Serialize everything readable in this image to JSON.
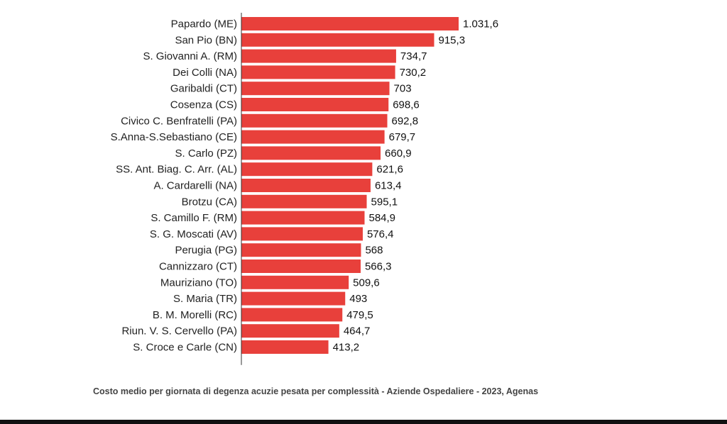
{
  "caption": "Costo medio per giornata di degenza acuzie pesata per complessità - Aziende Ospedaliere - 2023, Agenas",
  "colors": {
    "bar": "#e8403b",
    "axis": "#333333",
    "background": "#ffffff"
  },
  "chart_data": {
    "type": "bar",
    "orientation": "horizontal",
    "title": "",
    "xlabel": "",
    "ylabel": "",
    "grid": false,
    "xlim": [
      0,
      1031.6
    ],
    "categories": [
      "Papardo (ME)",
      "San Pio (BN)",
      "S. Giovanni A. (RM)",
      "Dei Colli (NA)",
      "Garibaldi (CT)",
      "Cosenza (CS)",
      "Civico C. Benfratelli (PA)",
      "S.Anna-S.Sebastiano (CE)",
      "S. Carlo (PZ)",
      "SS. Ant. Biag. C. Arr. (AL)",
      "A. Cardarelli (NA)",
      "Brotzu (CA)",
      "S. Camillo F. (RM)",
      "S. G. Moscati (AV)",
      "Perugia (PG)",
      "Cannizzaro (CT)",
      "Mauriziano (TO)",
      "S. Maria (TR)",
      "B. M. Morelli (RC)",
      "Riun. V. S. Cervello (PA)",
      "S. Croce e Carle (CN)"
    ],
    "values": [
      1031.6,
      915.3,
      734.7,
      730.2,
      703,
      698.6,
      692.8,
      679.7,
      660.9,
      621.6,
      613.4,
      595.1,
      584.9,
      576.4,
      568,
      566.3,
      509.6,
      493,
      479.5,
      464.7,
      413.2
    ],
    "value_labels": [
      "1.031,6",
      "915,3",
      "734,7",
      "730,2",
      "703",
      "698,6",
      "692,8",
      "679,7",
      "660,9",
      "621,6",
      "613,4",
      "595,1",
      "584,9",
      "576,4",
      "568",
      "566,3",
      "509,6",
      "493",
      "479,5",
      "464,7",
      "413,2"
    ]
  }
}
